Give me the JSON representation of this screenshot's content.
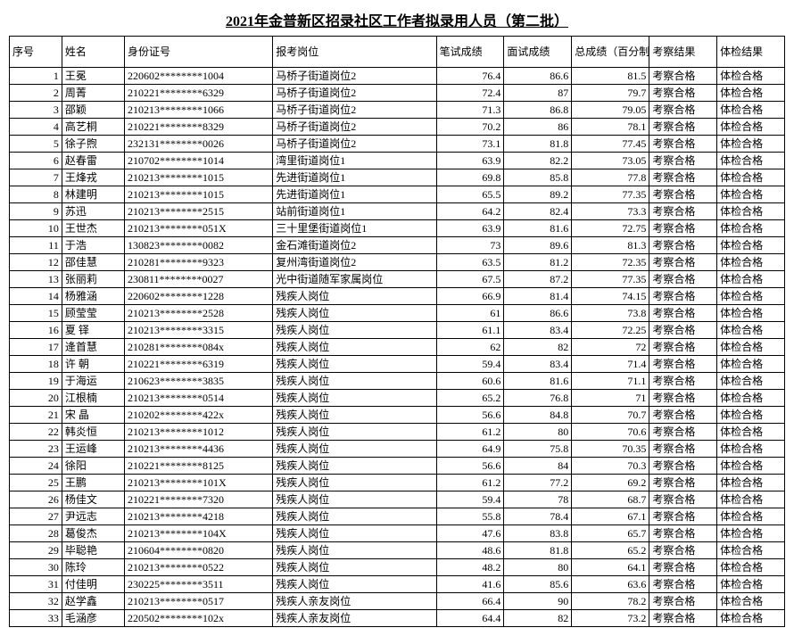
{
  "title": "2021年金普新区招录社区工作者拟录用人员（第二批）",
  "columns": [
    "序号",
    "姓名",
    "身份证号",
    "报考岗位",
    "笔试成绩",
    "面试成绩",
    "总成绩（百分制）",
    "考察结果",
    "体检结果"
  ],
  "col_classes": [
    "col-idx",
    "col-name",
    "col-id",
    "col-pos",
    "col-score",
    "col-score",
    "col-total",
    "col-result",
    "col-result"
  ],
  "cell_align": [
    "num",
    "txt",
    "txt",
    "txt",
    "num",
    "num",
    "num",
    "txt",
    "txt"
  ],
  "rows": [
    [
      "1",
      "王冕",
      "220602********1004",
      "马桥子街道岗位2",
      "76.4",
      "86.6",
      "81.5",
      "考察合格",
      "体检合格"
    ],
    [
      "2",
      "周菁",
      "210221********6329",
      "马桥子街道岗位2",
      "72.4",
      "87",
      "79.7",
      "考察合格",
      "体检合格"
    ],
    [
      "3",
      "邵颖",
      "210213********1066",
      "马桥子街道岗位2",
      "71.3",
      "86.8",
      "79.05",
      "考察合格",
      "体检合格"
    ],
    [
      "4",
      "高艺桐",
      "210221********8329",
      "马桥子街道岗位2",
      "70.2",
      "86",
      "78.1",
      "考察合格",
      "体检合格"
    ],
    [
      "5",
      "徐子煦",
      "232131********0026",
      "马桥子街道岗位2",
      "73.1",
      "81.8",
      "77.45",
      "考察合格",
      "体检合格"
    ],
    [
      "6",
      "赵春雷",
      "210702********1014",
      "湾里街道岗位1",
      "63.9",
      "82.2",
      "73.05",
      "考察合格",
      "体检合格"
    ],
    [
      "7",
      "王烽戎",
      "210213********1015",
      "先进街道岗位1",
      "69.8",
      "85.8",
      "77.8",
      "考察合格",
      "体检合格"
    ],
    [
      "8",
      "林建明",
      "210213********1015",
      "先进街道岗位1",
      "65.5",
      "89.2",
      "77.35",
      "考察合格",
      "体检合格"
    ],
    [
      "9",
      "苏迅",
      "210213********2515",
      "站前街道岗位1",
      "64.2",
      "82.4",
      "73.3",
      "考察合格",
      "体检合格"
    ],
    [
      "10",
      "王世杰",
      "210213********051X",
      "三十里堡街道岗位1",
      "63.9",
      "81.6",
      "72.75",
      "考察合格",
      "体检合格"
    ],
    [
      "11",
      "于浩",
      "130823********0082",
      "金石滩街道岗位2",
      "73",
      "89.6",
      "81.3",
      "考察合格",
      "体检合格"
    ],
    [
      "12",
      "邵佳慧",
      "210281********9323",
      "复州湾街道岗位2",
      "63.5",
      "81.2",
      "72.35",
      "考察合格",
      "体检合格"
    ],
    [
      "13",
      "张丽莉",
      "230811********0027",
      "光中街道随军家属岗位",
      "67.5",
      "87.2",
      "77.35",
      "考察合格",
      "体检合格"
    ],
    [
      "14",
      "杨雅涵",
      "220602********1228",
      "残疾人岗位",
      "66.9",
      "81.4",
      "74.15",
      "考察合格",
      "体检合格"
    ],
    [
      "15",
      "顾莹莹",
      "210213********2528",
      "残疾人岗位",
      "61",
      "86.6",
      "73.8",
      "考察合格",
      "体检合格"
    ],
    [
      "16",
      "夏 铎",
      "210213********3315",
      "残疾人岗位",
      "61.1",
      "83.4",
      "72.25",
      "考察合格",
      "体检合格"
    ],
    [
      "17",
      "逄首慧",
      "210281********084x",
      "残疾人岗位",
      "62",
      "82",
      "72",
      "考察合格",
      "体检合格"
    ],
    [
      "18",
      "许 朝",
      "210221********6319",
      "残疾人岗位",
      "59.4",
      "83.4",
      "71.4",
      "考察合格",
      "体检合格"
    ],
    [
      "19",
      "于海运",
      "210623********3835",
      "残疾人岗位",
      "60.6",
      "81.6",
      "71.1",
      "考察合格",
      "体检合格"
    ],
    [
      "20",
      "江根楠",
      "210213********0514",
      "残疾人岗位",
      "65.2",
      "76.8",
      "71",
      "考察合格",
      "体检合格"
    ],
    [
      "21",
      "宋 晶",
      "210202********422x",
      "残疾人岗位",
      "56.6",
      "84.8",
      "70.7",
      "考察合格",
      "体检合格"
    ],
    [
      "22",
      "韩炎恒",
      "210213********1012",
      "残疾人岗位",
      "61.2",
      "80",
      "70.6",
      "考察合格",
      "体检合格"
    ],
    [
      "23",
      "王运峰",
      "210213********4436",
      "残疾人岗位",
      "64.9",
      "75.8",
      "70.35",
      "考察合格",
      "体检合格"
    ],
    [
      "24",
      "徐阳",
      "210221********8125",
      "残疾人岗位",
      "56.6",
      "84",
      "70.3",
      "考察合格",
      "体检合格"
    ],
    [
      "25",
      "王鹏",
      "210213********101X",
      "残疾人岗位",
      "61.2",
      "77.2",
      "69.2",
      "考察合格",
      "体检合格"
    ],
    [
      "26",
      "杨佳文",
      "210221********7320",
      "残疾人岗位",
      "59.4",
      "78",
      "68.7",
      "考察合格",
      "体检合格"
    ],
    [
      "27",
      "尹远志",
      "210213********4218",
      "残疾人岗位",
      "55.8",
      "78.4",
      "67.1",
      "考察合格",
      "体检合格"
    ],
    [
      "28",
      "葛俊杰",
      "210213********104X",
      "残疾人岗位",
      "47.6",
      "83.8",
      "65.7",
      "考察合格",
      "体检合格"
    ],
    [
      "29",
      "毕聪艳",
      "210604********0820",
      "残疾人岗位",
      "48.6",
      "81.8",
      "65.2",
      "考察合格",
      "体检合格"
    ],
    [
      "30",
      "陈玲",
      "210213********0522",
      "残疾人岗位",
      "48.2",
      "80",
      "64.1",
      "考察合格",
      "体检合格"
    ],
    [
      "31",
      "付佳明",
      "230225********3511",
      "残疾人岗位",
      "41.6",
      "85.6",
      "63.6",
      "考察合格",
      "体检合格"
    ],
    [
      "32",
      "赵学鑫",
      "210213********0517",
      "残疾人亲友岗位",
      "66.4",
      "90",
      "78.2",
      "考察合格",
      "体检合格"
    ],
    [
      "33",
      "毛涵彦",
      "220502********102x",
      "残疾人亲友岗位",
      "64.4",
      "82",
      "73.2",
      "考察合格",
      "体检合格"
    ]
  ]
}
